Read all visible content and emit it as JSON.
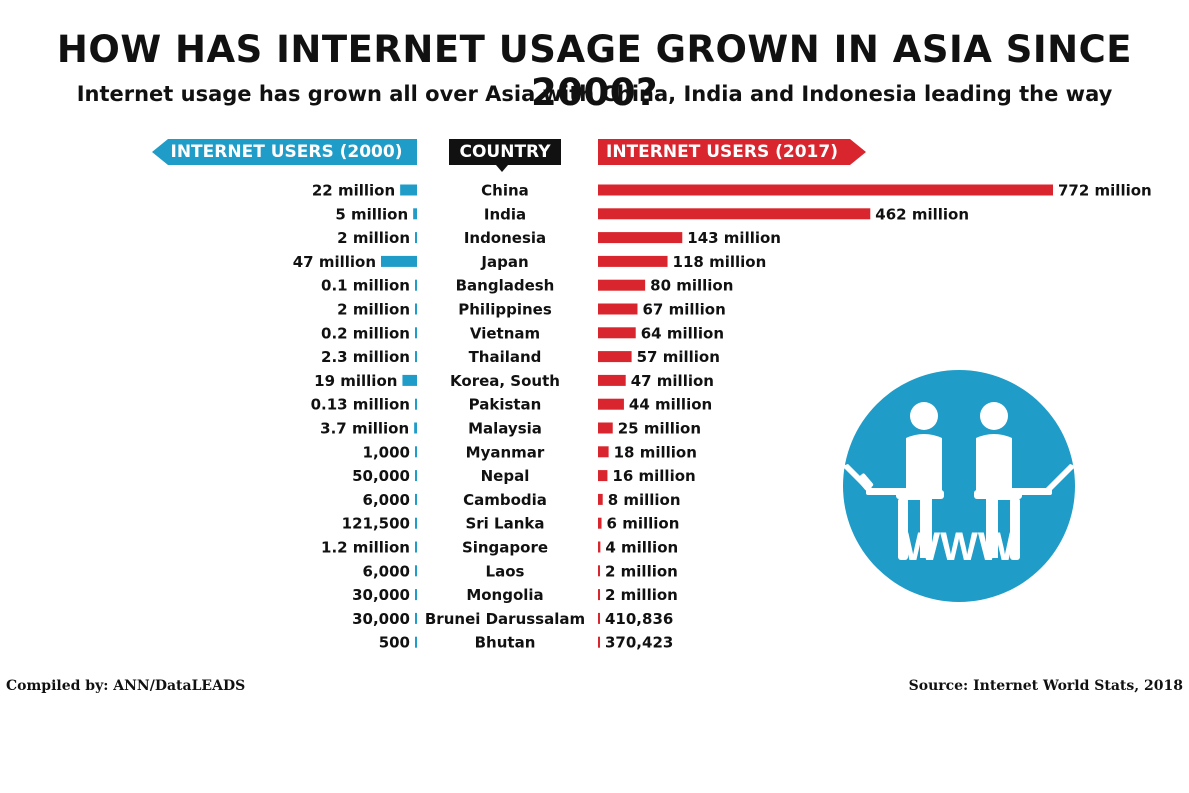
{
  "title": "HOW HAS INTERNET USAGE GROWN IN ASIA SINCE 2000?",
  "subtitle": "Internet usage has grown all over Asia with China, India and Indonesia leading the way",
  "headers": {
    "users_2000": "INTERNET USERS (2000)",
    "country": "COUNTRY",
    "users_2017": "INTERNET USERS (2017)"
  },
  "icon": {
    "name": "people-at-laptops-icon",
    "text": "WWW"
  },
  "colors": {
    "blue": "#1f9cc7",
    "red": "#d9262e",
    "black": "#111111"
  },
  "footer": {
    "compiled_by": "Compiled by: ANN/DataLEADS",
    "source": "Source: Internet World Stats, 2018"
  },
  "chart_data": {
    "type": "bar",
    "categories": [
      "China",
      "India",
      "Indonesia",
      "Japan",
      "Bangladesh",
      "Philippines",
      "Vietnam",
      "Thailand",
      "Korea, South",
      "Pakistan",
      "Malaysia",
      "Myanmar",
      "Nepal",
      "Cambodia",
      "Sri Lanka",
      "Singapore",
      "Laos",
      "Mongolia",
      "Brunei Darussalam",
      "Bhutan"
    ],
    "series": [
      {
        "name": "INTERNET USERS (2000)",
        "values": [
          22000000,
          5000000,
          2000000,
          47000000,
          100000,
          2000000,
          200000,
          2300000,
          19000000,
          130000,
          3700000,
          1000,
          50000,
          6000,
          121500,
          1200000,
          6000,
          30000,
          30000,
          500
        ],
        "labels": [
          "22 million",
          "5 million",
          "2 million",
          "47 million",
          "0.1 million",
          "2 million",
          "0.2 million",
          "2.3 million",
          "19 million",
          "0.13 million",
          "3.7 million",
          "1,000",
          "50,000",
          "6,000",
          "121,500",
          "1.2 million",
          "6,000",
          "30,000",
          "30,000",
          "500"
        ]
      },
      {
        "name": "INTERNET USERS (2017)",
        "values": [
          772000000,
          462000000,
          143000000,
          118000000,
          80000000,
          67000000,
          64000000,
          57000000,
          47000000,
          44000000,
          25000000,
          18000000,
          16000000,
          8000000,
          6000000,
          4000000,
          2000000,
          2000000,
          410836,
          370423
        ],
        "labels": [
          "772 million",
          "462 million",
          "143 million",
          "118 million",
          "80 million",
          "67 million",
          "64 million",
          "57 million",
          "47 million",
          "44 million",
          "25 million",
          "18 million",
          "16 million",
          "8 million",
          "6 million",
          "4 million",
          "2 million",
          "2 million",
          "410,836",
          "370,423"
        ]
      }
    ]
  }
}
